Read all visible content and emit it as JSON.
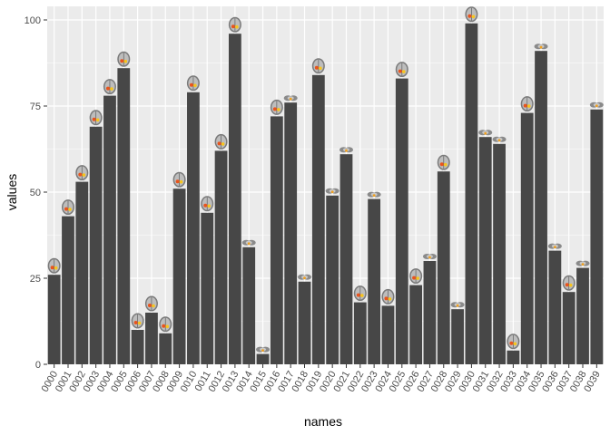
{
  "chart_data": {
    "type": "bar",
    "title": "",
    "xlabel": "names",
    "ylabel": "values",
    "ylim": [
      0,
      100
    ],
    "yticks": [
      0,
      25,
      50,
      75,
      100
    ],
    "grid": true,
    "categories": [
      "0000",
      "0001",
      "0002",
      "0003",
      "0004",
      "0005",
      "0006",
      "0007",
      "0008",
      "0009",
      "0010",
      "0011",
      "0012",
      "0013",
      "0014",
      "0015",
      "0016",
      "0017",
      "0018",
      "0019",
      "0020",
      "0021",
      "0022",
      "0023",
      "0024",
      "0025",
      "0026",
      "0027",
      "0028",
      "0029",
      "0030",
      "0031",
      "0032",
      "0033",
      "0034",
      "0035",
      "0036",
      "0037",
      "0038",
      "0039"
    ],
    "values": [
      26,
      43,
      53,
      69,
      78,
      86,
      10,
      15,
      9,
      51,
      79,
      44,
      62,
      96,
      34,
      3,
      72,
      76,
      24,
      84,
      49,
      61,
      18,
      48,
      17,
      83,
      23,
      30,
      56,
      16,
      99,
      66,
      64,
      4,
      73,
      91,
      33,
      21,
      28,
      74
    ],
    "bar_color": "#474747",
    "panel_background": "#ebebeb",
    "gridline_color": "#ffffff",
    "annotations": {
      "type": "brain-image-icons",
      "views": [
        "axial",
        "axial",
        "axial",
        "axial",
        "axial",
        "axial",
        "axial",
        "axial",
        "axial",
        "axial",
        "axial",
        "axial",
        "axial",
        "axial",
        "coronal",
        "coronal",
        "axial",
        "coronal",
        "coronal",
        "axial",
        "coronal",
        "coronal",
        "axial",
        "coronal",
        "axial",
        "axial",
        "axial",
        "coronal",
        "axial",
        "coronal",
        "axial",
        "coronal",
        "coronal",
        "axial",
        "axial",
        "coronal",
        "coronal",
        "axial",
        "coronal",
        "coronal"
      ]
    }
  }
}
